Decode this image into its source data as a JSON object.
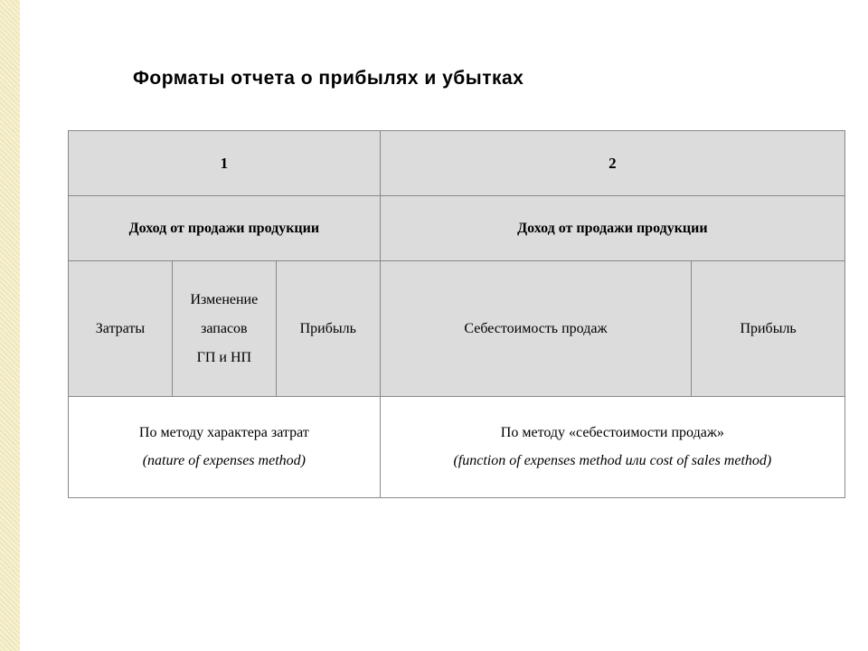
{
  "title": "Форматы отчета о прибылях и убытках",
  "table": {
    "header": {
      "col1": "1",
      "col2": "2"
    },
    "row2": {
      "left": "Доход от продажи продукции",
      "right": "Доход от продажи продукции"
    },
    "row3": {
      "c1": "Затраты",
      "c2_l1": "Изменение",
      "c2_l2": "запасов",
      "c2_l3": "ГП и НП",
      "c3": "Прибыль",
      "c4": "Себестоимость продаж",
      "c5": "Прибыль"
    },
    "row4": {
      "left_l1": "По методу характера затрат",
      "left_l2": "(nature of expenses  method)",
      "right_l1": "По методу «себестоимости продаж»",
      "right_l2": "(function of expenses method  или cost of sales method)"
    }
  },
  "colors": {
    "header_bg": "#dcdcdc",
    "body_bg": "#ffffff",
    "border": "#888888",
    "strip_pattern_a": "#efe6b8",
    "strip_pattern_b": "#f7f2d8"
  }
}
